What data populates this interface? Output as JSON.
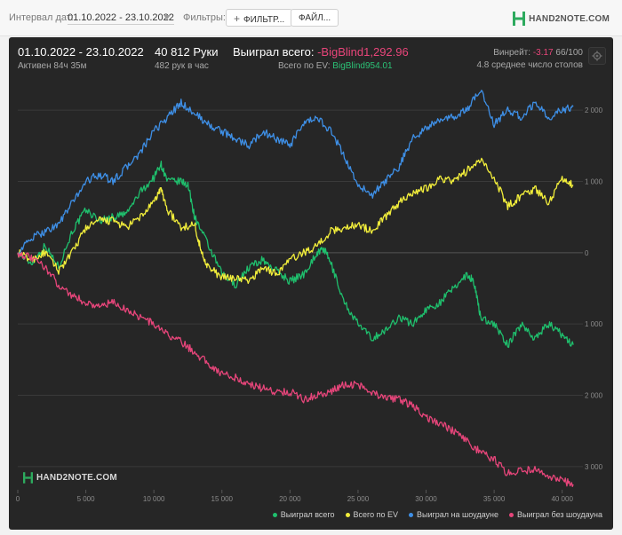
{
  "topbar": {
    "interval_label": "Интервал дат:",
    "date_range": "01.10.2022 - 23.10.2022",
    "filters_label": "Фильтры:",
    "filter_button": "ФИЛЬТР...",
    "file_button": "ФАЙЛ...",
    "logo": "HAND2NOTE.COM"
  },
  "summary": {
    "date_range": "01.10.2022 - 23.10.2022",
    "active": "Активен 84ч 35м",
    "hands": "40 812 Руки",
    "hands_per_hour": "482 рук в час",
    "won_label": "Выиграл всего:",
    "won_value": "-BigBlind1,292.96",
    "ev_label": "Всего по EV:",
    "ev_value": "BigBlind954.01",
    "winrate_label": "Винрейт:",
    "winrate_value": "-3.17",
    "winrate_suffix": "66/100",
    "tables": "4.8 среднее число столов"
  },
  "chart_logo": "HAND2NOTE.COM",
  "colors": {
    "green": "#1fbf6d",
    "yellow": "#f2ee3b",
    "blue": "#3e8fe6",
    "pink": "#e6457a"
  },
  "chart_data": {
    "type": "line",
    "xlim": [
      0,
      41000
    ],
    "ylim": [
      -3300,
      2300
    ],
    "x_ticks": [
      0,
      5000,
      10000,
      15000,
      20000,
      25000,
      30000,
      35000,
      40000
    ],
    "x_tick_labels": [
      "0",
      "5 000",
      "10 000",
      "15 000",
      "20 000",
      "25 000",
      "30 000",
      "35 000",
      "40 000"
    ],
    "y_ticks": [
      2000,
      1000,
      0,
      -1000,
      -2000,
      -3000
    ],
    "y_tick_labels": [
      "2 000",
      "1 000",
      "0",
      "1 000",
      "2 000",
      "3 000"
    ],
    "grid": true,
    "legend": "bottom-right",
    "series": [
      {
        "name": "Выиграл всего",
        "color": "#1fbf6d",
        "x": [
          0,
          1000,
          2000,
          3000,
          4000,
          5000,
          6000,
          7000,
          8000,
          9000,
          10000,
          10500,
          11000,
          12000,
          12500,
          13000,
          14000,
          15000,
          16000,
          17000,
          18000,
          19000,
          20000,
          21000,
          22000,
          22500,
          23000,
          24000,
          25000,
          26000,
          27000,
          28000,
          29000,
          30000,
          31000,
          32000,
          33000,
          33500,
          34000,
          35000,
          36000,
          37000,
          38000,
          39000,
          40000,
          40812
        ],
        "y": [
          0,
          -150,
          100,
          -200,
          300,
          600,
          450,
          500,
          550,
          850,
          1050,
          1250,
          1000,
          1000,
          950,
          500,
          100,
          -300,
          -450,
          -200,
          -100,
          -250,
          -400,
          -300,
          0,
          50,
          -150,
          -700,
          -1000,
          -1200,
          -1100,
          -900,
          -1000,
          -800,
          -700,
          -500,
          -300,
          -400,
          -900,
          -1000,
          -1300,
          -1000,
          -1200,
          -1000,
          -1150,
          -1293
        ]
      },
      {
        "name": "Всего по EV",
        "color": "#f2ee3b",
        "x": [
          0,
          1000,
          2000,
          3000,
          4000,
          5000,
          6000,
          7000,
          8000,
          9000,
          10000,
          10500,
          11000,
          12000,
          13000,
          13500,
          14000,
          15000,
          16000,
          17000,
          18000,
          19000,
          20000,
          21000,
          22000,
          23000,
          24000,
          25000,
          26000,
          27000,
          28000,
          29000,
          30000,
          31000,
          32000,
          33000,
          34000,
          35000,
          36000,
          37000,
          38000,
          39000,
          40000,
          40812
        ],
        "y": [
          0,
          -100,
          0,
          -250,
          0,
          350,
          450,
          450,
          350,
          500,
          700,
          900,
          600,
          350,
          400,
          0,
          -200,
          -350,
          -350,
          -400,
          -200,
          -300,
          -100,
          0,
          100,
          300,
          350,
          400,
          300,
          500,
          700,
          850,
          900,
          1050,
          1000,
          1150,
          1300,
          1050,
          650,
          800,
          900,
          700,
          1050,
          950
        ]
      },
      {
        "name": "Выиграл на шоудауне",
        "color": "#3e8fe6",
        "x": [
          0,
          1000,
          2000,
          3000,
          4000,
          5000,
          6000,
          7000,
          8000,
          9000,
          10000,
          11000,
          12000,
          13000,
          14000,
          15000,
          16000,
          17000,
          18000,
          19000,
          20000,
          21000,
          22000,
          23000,
          24000,
          25000,
          26000,
          27000,
          28000,
          29000,
          30000,
          31000,
          32000,
          33000,
          34000,
          35000,
          36000,
          37000,
          38000,
          39000,
          40000,
          40812
        ],
        "y": [
          0,
          200,
          300,
          400,
          700,
          1000,
          1100,
          1000,
          1200,
          1400,
          1700,
          1900,
          2100,
          1950,
          1800,
          1700,
          1600,
          1500,
          1700,
          1600,
          1500,
          1800,
          1900,
          1700,
          1350,
          950,
          800,
          1000,
          1200,
          1600,
          1750,
          1850,
          1900,
          2000,
          2300,
          1800,
          2000,
          1900,
          2100,
          1900,
          2000,
          2050
        ]
      },
      {
        "name": "Выиграл без шоудауна",
        "color": "#e6457a",
        "x": [
          0,
          1000,
          2000,
          3000,
          4000,
          5000,
          6000,
          7000,
          8000,
          9000,
          10000,
          11000,
          12000,
          13000,
          14000,
          15000,
          16000,
          17000,
          18000,
          19000,
          20000,
          21000,
          22000,
          23000,
          24000,
          25000,
          26000,
          27000,
          28000,
          29000,
          30000,
          31000,
          32000,
          33000,
          34000,
          35000,
          36000,
          37000,
          38000,
          39000,
          40000,
          40812
        ],
        "y": [
          0,
          -80,
          -200,
          -450,
          -600,
          -700,
          -750,
          -700,
          -800,
          -900,
          -1000,
          -1150,
          -1250,
          -1400,
          -1550,
          -1700,
          -1750,
          -1850,
          -1900,
          -1950,
          -1950,
          -2050,
          -2000,
          -1950,
          -1850,
          -1850,
          -1950,
          -2050,
          -2050,
          -2150,
          -2300,
          -2400,
          -2500,
          -2650,
          -2800,
          -2900,
          -3100,
          -3050,
          -3050,
          -3150,
          -3200,
          -3250
        ]
      }
    ]
  }
}
